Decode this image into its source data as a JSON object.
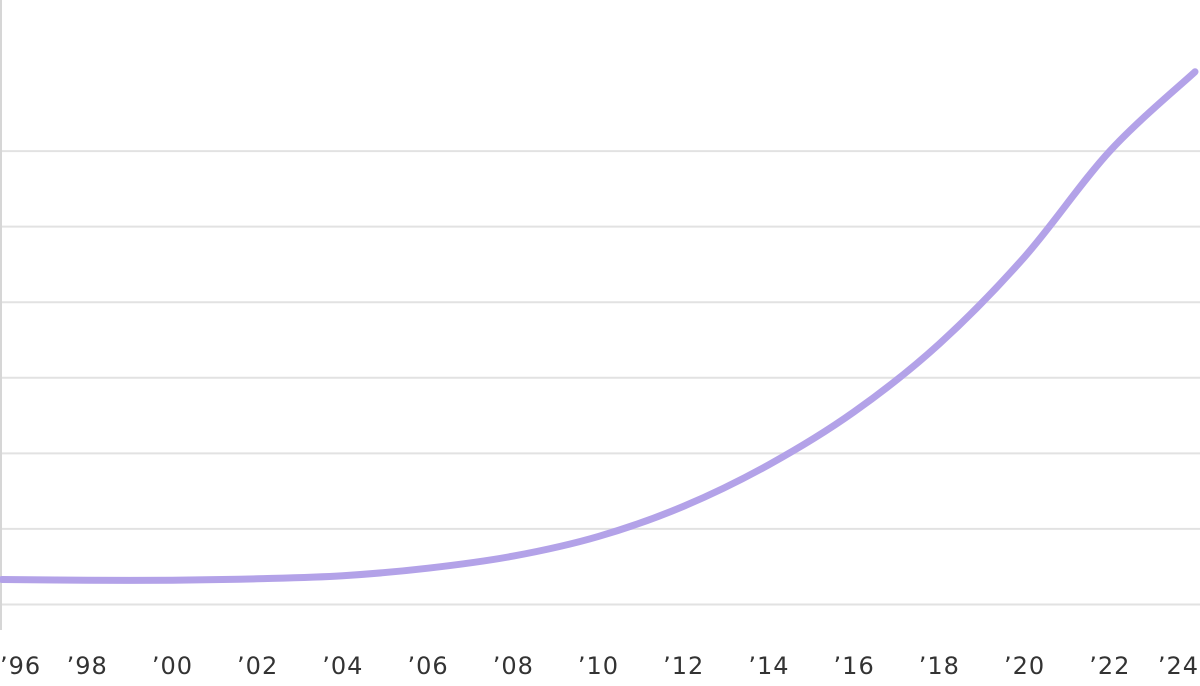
{
  "chart_data": {
    "type": "line",
    "title": "",
    "xlabel": "",
    "ylabel": "",
    "x_tick_labels": [
      "’96",
      "’98",
      "’00",
      "’02",
      "’04",
      "’06",
      "’08",
      "’10",
      "’12",
      "’14",
      "’16",
      "’18",
      "’20",
      "’22",
      "’24"
    ],
    "x_tick_years": [
      1996,
      1998,
      2000,
      2002,
      2004,
      2006,
      2008,
      2010,
      2012,
      2014,
      2016,
      2018,
      2020,
      2022,
      2024
    ],
    "xlim": [
      1996,
      2024
    ],
    "ylim": [
      0,
      9
    ],
    "gridlines_y": [
      1,
      2,
      3,
      4,
      5,
      6,
      7
    ],
    "grid": true,
    "legend": "none",
    "series": [
      {
        "color": "#b3a2e8",
        "x": [
          1996,
          1998,
          2000,
          2002,
          2004,
          2006,
          2008,
          2010,
          2012,
          2014,
          2016,
          2018,
          2020,
          2022,
          2024
        ],
        "y": [
          1.33,
          1.32,
          1.32,
          1.34,
          1.38,
          1.48,
          1.64,
          1.9,
          2.3,
          2.85,
          3.55,
          4.45,
          5.6,
          7.0,
          8.05
        ]
      }
    ]
  }
}
